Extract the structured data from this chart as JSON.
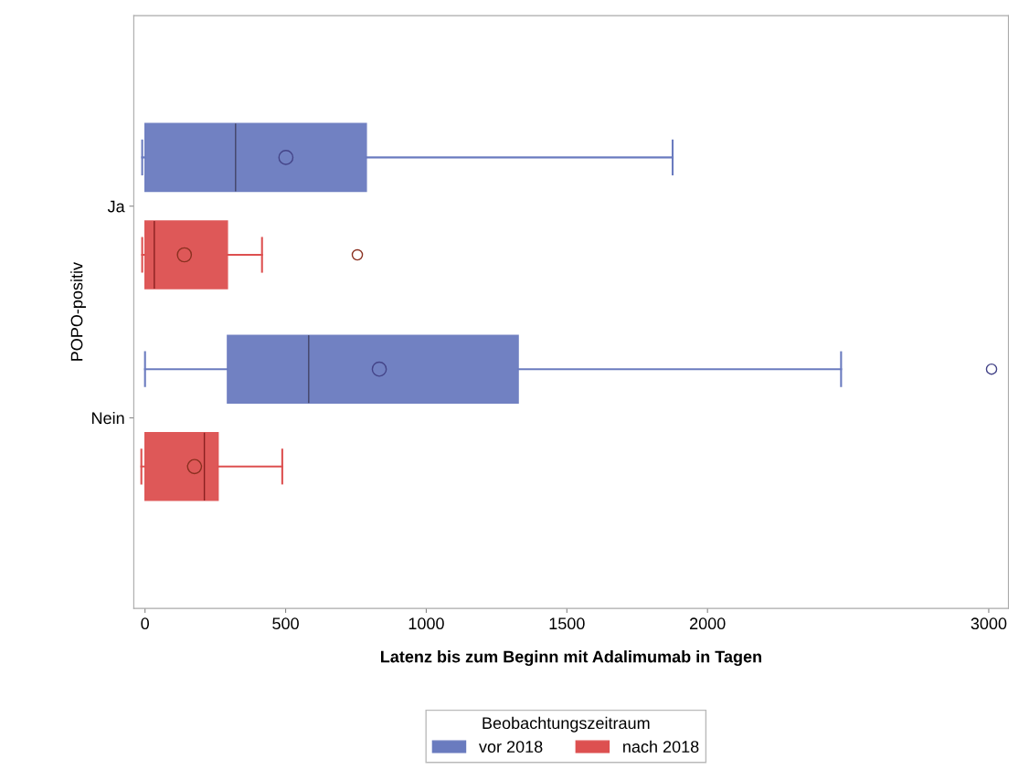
{
  "chart_data": {
    "type": "box",
    "orientation": "horizontal",
    "xlabel": "Latenz bis zum Beginn mit Adalimumab in Tagen",
    "ylabel": "POPO-positiv",
    "legend_title": "Beobachtungszeitraum",
    "legend": "bottom",
    "grid": false,
    "categories": [
      "Ja",
      "Nein"
    ],
    "xlim": [
      -40,
      3070
    ],
    "xticks": [
      0,
      500,
      1000,
      1500,
      2000,
      3000
    ],
    "series": [
      {
        "name": "vor 2018",
        "color": "#6a7bbf",
        "boxes": [
          {
            "low": -10,
            "q1": 0,
            "median": 322,
            "q3": 787,
            "high": 1876,
            "mean": 501
          },
          {
            "low": 0,
            "q1": 293,
            "median": 582,
            "q3": 1327,
            "high": 2475,
            "mean": 833,
            "outliers": [
              3010
            ]
          }
        ]
      },
      {
        "name": "nach 2018",
        "color": "#dd5050",
        "boxes": [
          {
            "low": -10,
            "q1": 0,
            "median": 33,
            "q3": 293,
            "high": 416,
            "mean": 140,
            "outliers": [
              755
            ]
          },
          {
            "low": -13,
            "q1": 0,
            "median": 211,
            "q3": 260,
            "high": 488,
            "mean": 176
          }
        ]
      }
    ]
  }
}
